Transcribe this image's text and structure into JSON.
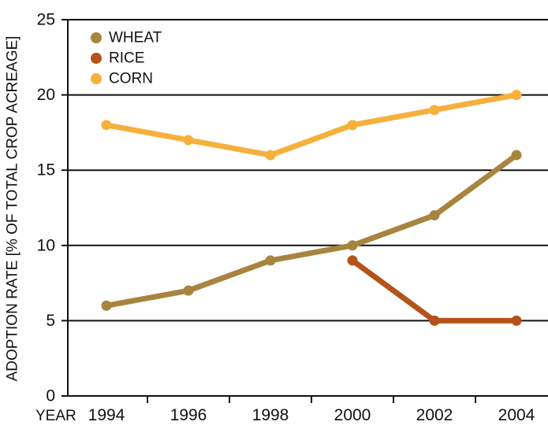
{
  "chart_data": {
    "type": "line",
    "title": "",
    "xlabel": "YEAR",
    "ylabel": "ADOPTION RATE [% OF TOTAL CROP ACREAGE]",
    "x": [
      1994,
      1996,
      1998,
      2000,
      2002,
      2004
    ],
    "x_tick_labels": [
      "1994",
      "1996",
      "1998",
      "2000",
      "2002",
      "2004"
    ],
    "ylim": [
      0,
      25
    ],
    "y_ticks": [
      0,
      5,
      10,
      15,
      20,
      25
    ],
    "y_tick_labels": [
      "0",
      "5",
      "10",
      "15",
      "20",
      "25"
    ],
    "grid": "horizontal at 5, 10, 15, 20",
    "legend_position": "top-left",
    "series": [
      {
        "name": "WHEAT",
        "color": "#a8843e",
        "points": [
          [
            1994,
            6
          ],
          [
            1996,
            7
          ],
          [
            1998,
            9
          ],
          [
            2000,
            10
          ],
          [
            2002,
            12
          ],
          [
            2004,
            16
          ]
        ]
      },
      {
        "name": "RICE",
        "color": "#b5521a",
        "points": [
          [
            2000,
            9
          ],
          [
            2002,
            5
          ],
          [
            2004,
            5
          ]
        ]
      },
      {
        "name": "CORN",
        "color": "#f6b03c",
        "points": [
          [
            1994,
            18
          ],
          [
            1996,
            17
          ],
          [
            1998,
            16
          ],
          [
            2000,
            18
          ],
          [
            2002,
            19
          ],
          [
            2004,
            20
          ]
        ]
      }
    ]
  }
}
